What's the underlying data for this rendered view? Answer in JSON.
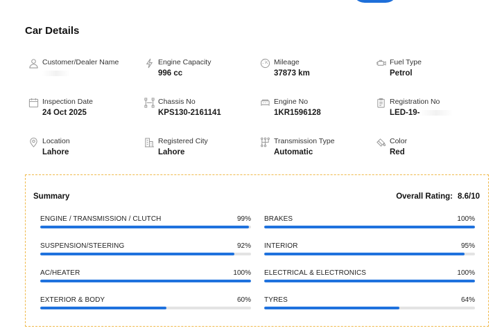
{
  "header": {
    "title": "Car Details"
  },
  "details": [
    [
      {
        "icon": "user-icon",
        "label": "Customer/Dealer Name",
        "value": ""
      },
      {
        "icon": "engine-capacity-icon",
        "label": "Engine Capacity",
        "value": "996 cc"
      },
      {
        "icon": "mileage-icon",
        "label": "Mileage",
        "value": "37873 km"
      },
      {
        "icon": "fuel-type-icon",
        "label": "Fuel Type",
        "value": "Petrol"
      }
    ],
    [
      {
        "icon": "calendar-icon",
        "label": "Inspection Date",
        "value": "24 Oct 2025"
      },
      {
        "icon": "chassis-icon",
        "label": "Chassis No",
        "value": "KPS130-2161141"
      },
      {
        "icon": "engine-icon",
        "label": "Engine No",
        "value": "1KR1596128"
      },
      {
        "icon": "clipboard-icon",
        "label": "Registration No",
        "value": "LED-19-"
      }
    ],
    [
      {
        "icon": "location-pin-icon",
        "label": "Location",
        "value": "Lahore"
      },
      {
        "icon": "city-icon",
        "label": "Registered City",
        "value": "Lahore"
      },
      {
        "icon": "transmission-icon",
        "label": "Transmission Type",
        "value": "Automatic"
      },
      {
        "icon": "paint-icon",
        "label": "Color",
        "value": "Red"
      }
    ]
  ],
  "summary": {
    "title": "Summary",
    "rating_label": "Overall Rating:",
    "rating_value": "8.6/10",
    "bar_color": "#1f72de",
    "categories": [
      [
        {
          "name": "ENGINE / TRANSMISSION / CLUTCH",
          "percent": 99,
          "percent_label": "99%"
        },
        {
          "name": "BRAKES",
          "percent": 100,
          "percent_label": "100%"
        }
      ],
      [
        {
          "name": "SUSPENSION/STEERING",
          "percent": 92,
          "percent_label": "92%"
        },
        {
          "name": "INTERIOR",
          "percent": 95,
          "percent_label": "95%"
        }
      ],
      [
        {
          "name": "AC/HEATER",
          "percent": 100,
          "percent_label": "100%"
        },
        {
          "name": "ELECTRICAL & ELECTRONICS",
          "percent": 100,
          "percent_label": "100%"
        }
      ],
      [
        {
          "name": "EXTERIOR & BODY",
          "percent": 60,
          "percent_label": "60%"
        },
        {
          "name": "TYRES",
          "percent": 64,
          "percent_label": "64%"
        }
      ]
    ]
  }
}
